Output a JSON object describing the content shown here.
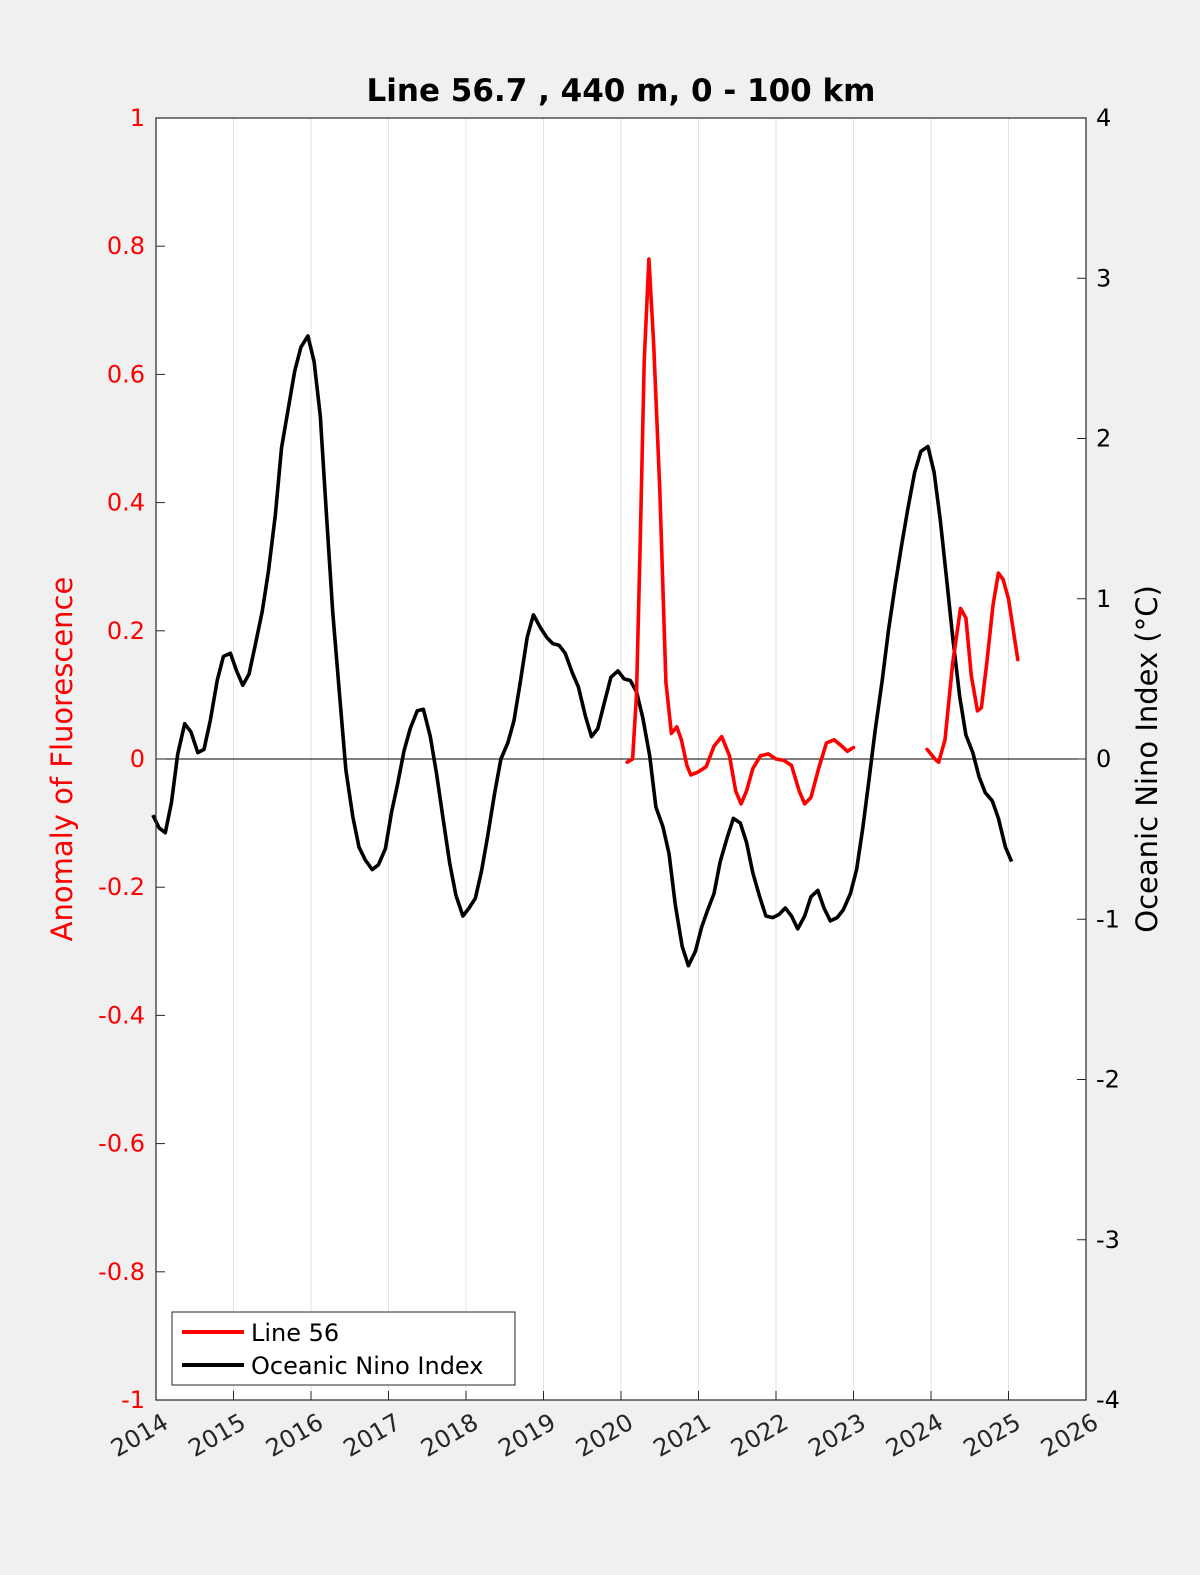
{
  "chart_data": {
    "type": "line",
    "title": "Line 56.7 , 440 m, 0 - 100 km",
    "ylabel_left": "Anomaly of Fluorescence",
    "ylabel_right": "Oceanic Nino Index (°C)",
    "xlabel": "",
    "xlim": [
      2014,
      2026
    ],
    "ylim_left": [
      -1,
      1
    ],
    "ylim_right": [
      -4,
      4
    ],
    "x_ticks": [
      "2014",
      "2015",
      "2016",
      "2017",
      "2018",
      "2019",
      "2020",
      "2021",
      "2022",
      "2023",
      "2024",
      "2025",
      "2026"
    ],
    "y_left_ticks": [
      "-1",
      "-0.8",
      "-0.6",
      "-0.4",
      "-0.2",
      "0",
      "0.2",
      "0.4",
      "0.6",
      "0.8",
      "1"
    ],
    "y_right_ticks": [
      "-4",
      "-3",
      "-2",
      "-1",
      "0",
      "1",
      "2",
      "3",
      "4"
    ],
    "grid": "vertical",
    "legend_position": "bottom-left",
    "colors": {
      "line56": "#ff0000",
      "oni": "#000000"
    },
    "series": [
      {
        "name": "Line 56",
        "axis": "left",
        "segments": [
          [
            [
              2020.08,
              -0.005
            ],
            [
              2020.15,
              0.0
            ],
            [
              2020.2,
              0.1
            ],
            [
              2020.25,
              0.35
            ],
            [
              2020.3,
              0.62
            ],
            [
              2020.36,
              0.78
            ],
            [
              2020.42,
              0.65
            ],
            [
              2020.5,
              0.42
            ],
            [
              2020.58,
              0.12
            ],
            [
              2020.65,
              0.04
            ],
            [
              2020.72,
              0.05
            ],
            [
              2020.78,
              0.03
            ],
            [
              2020.85,
              -0.01
            ],
            [
              2020.9,
              -0.025
            ],
            [
              2021.0,
              -0.02
            ],
            [
              2021.1,
              -0.012
            ],
            [
              2021.2,
              0.02
            ],
            [
              2021.3,
              0.035
            ],
            [
              2021.4,
              0.005
            ],
            [
              2021.48,
              -0.05
            ],
            [
              2021.55,
              -0.07
            ],
            [
              2021.62,
              -0.05
            ],
            [
              2021.7,
              -0.015
            ],
            [
              2021.8,
              0.005
            ],
            [
              2021.9,
              0.008
            ],
            [
              2022.0,
              0.0
            ],
            [
              2022.1,
              -0.002
            ],
            [
              2022.2,
              -0.01
            ],
            [
              2022.3,
              -0.05
            ],
            [
              2022.37,
              -0.07
            ],
            [
              2022.45,
              -0.06
            ],
            [
              2022.55,
              -0.015
            ],
            [
              2022.65,
              0.025
            ],
            [
              2022.75,
              0.03
            ],
            [
              2022.85,
              0.02
            ],
            [
              2022.92,
              0.012
            ],
            [
              2023.0,
              0.018
            ]
          ],
          [
            [
              2023.95,
              0.015
            ],
            [
              2024.05,
              0.0
            ],
            [
              2024.1,
              -0.005
            ],
            [
              2024.18,
              0.03
            ],
            [
              2024.28,
              0.15
            ],
            [
              2024.38,
              0.235
            ],
            [
              2024.45,
              0.22
            ],
            [
              2024.52,
              0.13
            ],
            [
              2024.6,
              0.075
            ],
            [
              2024.65,
              0.08
            ],
            [
              2024.72,
              0.15
            ],
            [
              2024.8,
              0.24
            ],
            [
              2024.87,
              0.29
            ],
            [
              2024.93,
              0.28
            ],
            [
              2025.0,
              0.25
            ],
            [
              2025.05,
              0.21
            ],
            [
              2025.12,
              0.155
            ]
          ]
        ]
      },
      {
        "name": "Oceanic Nino Index",
        "axis": "right",
        "points": [
          [
            2013.96,
            -0.35
          ],
          [
            2014.04,
            -0.43
          ],
          [
            2014.12,
            -0.46
          ],
          [
            2014.2,
            -0.27
          ],
          [
            2014.28,
            0.03
          ],
          [
            2014.37,
            0.22
          ],
          [
            2014.45,
            0.17
          ],
          [
            2014.54,
            0.04
          ],
          [
            2014.62,
            0.06
          ],
          [
            2014.7,
            0.24
          ],
          [
            2014.79,
            0.49
          ],
          [
            2014.87,
            0.64
          ],
          [
            2014.96,
            0.66
          ],
          [
            2015.04,
            0.55
          ],
          [
            2015.12,
            0.46
          ],
          [
            2015.2,
            0.53
          ],
          [
            2015.28,
            0.71
          ],
          [
            2015.37,
            0.92
          ],
          [
            2015.45,
            1.17
          ],
          [
            2015.54,
            1.52
          ],
          [
            2015.62,
            1.94
          ],
          [
            2015.7,
            2.17
          ],
          [
            2015.79,
            2.42
          ],
          [
            2015.87,
            2.57
          ],
          [
            2015.96,
            2.64
          ],
          [
            2016.04,
            2.48
          ],
          [
            2016.12,
            2.14
          ],
          [
            2016.2,
            1.52
          ],
          [
            2016.28,
            0.92
          ],
          [
            2016.37,
            0.39
          ],
          [
            2016.45,
            -0.07
          ],
          [
            2016.54,
            -0.36
          ],
          [
            2016.62,
            -0.55
          ],
          [
            2016.7,
            -0.63
          ],
          [
            2016.79,
            -0.69
          ],
          [
            2016.87,
            -0.66
          ],
          [
            2016.96,
            -0.56
          ],
          [
            2017.04,
            -0.33
          ],
          [
            2017.12,
            -0.15
          ],
          [
            2017.2,
            0.05
          ],
          [
            2017.28,
            0.19
          ],
          [
            2017.37,
            0.3
          ],
          [
            2017.45,
            0.31
          ],
          [
            2017.54,
            0.14
          ],
          [
            2017.62,
            -0.09
          ],
          [
            2017.7,
            -0.36
          ],
          [
            2017.79,
            -0.65
          ],
          [
            2017.87,
            -0.85
          ],
          [
            2017.96,
            -0.98
          ],
          [
            2018.04,
            -0.93
          ],
          [
            2018.12,
            -0.87
          ],
          [
            2018.2,
            -0.7
          ],
          [
            2018.28,
            -0.48
          ],
          [
            2018.37,
            -0.21
          ],
          [
            2018.45,
            0.0
          ],
          [
            2018.54,
            0.1
          ],
          [
            2018.62,
            0.24
          ],
          [
            2018.7,
            0.48
          ],
          [
            2018.79,
            0.76
          ],
          [
            2018.87,
            0.9
          ],
          [
            2018.96,
            0.82
          ],
          [
            2019.04,
            0.76
          ],
          [
            2019.12,
            0.72
          ],
          [
            2019.2,
            0.71
          ],
          [
            2019.28,
            0.66
          ],
          [
            2019.37,
            0.54
          ],
          [
            2019.45,
            0.45
          ],
          [
            2019.54,
            0.27
          ],
          [
            2019.62,
            0.14
          ],
          [
            2019.7,
            0.19
          ],
          [
            2019.79,
            0.36
          ],
          [
            2019.87,
            0.51
          ],
          [
            2019.96,
            0.55
          ],
          [
            2020.04,
            0.5
          ],
          [
            2020.12,
            0.49
          ],
          [
            2020.2,
            0.42
          ],
          [
            2020.28,
            0.26
          ],
          [
            2020.37,
            0.02
          ],
          [
            2020.45,
            -0.3
          ],
          [
            2020.54,
            -0.42
          ],
          [
            2020.62,
            -0.59
          ],
          [
            2020.7,
            -0.91
          ],
          [
            2020.79,
            -1.17
          ],
          [
            2020.87,
            -1.29
          ],
          [
            2020.96,
            -1.2
          ],
          [
            2021.04,
            -1.05
          ],
          [
            2021.12,
            -0.94
          ],
          [
            2021.2,
            -0.84
          ],
          [
            2021.28,
            -0.64
          ],
          [
            2021.37,
            -0.49
          ],
          [
            2021.45,
            -0.37
          ],
          [
            2021.54,
            -0.4
          ],
          [
            2021.62,
            -0.52
          ],
          [
            2021.7,
            -0.71
          ],
          [
            2021.79,
            -0.86
          ],
          [
            2021.87,
            -0.98
          ],
          [
            2021.96,
            -0.99
          ],
          [
            2022.04,
            -0.97
          ],
          [
            2022.12,
            -0.93
          ],
          [
            2022.2,
            -0.98
          ],
          [
            2022.28,
            -1.06
          ],
          [
            2022.37,
            -0.98
          ],
          [
            2022.45,
            -0.86
          ],
          [
            2022.54,
            -0.82
          ],
          [
            2022.62,
            -0.93
          ],
          [
            2022.7,
            -1.01
          ],
          [
            2022.79,
            -0.99
          ],
          [
            2022.87,
            -0.94
          ],
          [
            2022.96,
            -0.84
          ],
          [
            2023.04,
            -0.69
          ],
          [
            2023.12,
            -0.43
          ],
          [
            2023.2,
            -0.13
          ],
          [
            2023.28,
            0.18
          ],
          [
            2023.37,
            0.49
          ],
          [
            2023.45,
            0.8
          ],
          [
            2023.54,
            1.09
          ],
          [
            2023.62,
            1.33
          ],
          [
            2023.7,
            1.56
          ],
          [
            2023.79,
            1.79
          ],
          [
            2023.87,
            1.92
          ],
          [
            2023.96,
            1.95
          ],
          [
            2024.04,
            1.79
          ],
          [
            2024.12,
            1.49
          ],
          [
            2024.2,
            1.13
          ],
          [
            2024.28,
            0.76
          ],
          [
            2024.37,
            0.39
          ],
          [
            2024.45,
            0.15
          ],
          [
            2024.54,
            0.04
          ],
          [
            2024.62,
            -0.11
          ],
          [
            2024.7,
            -0.21
          ],
          [
            2024.79,
            -0.26
          ],
          [
            2024.87,
            -0.37
          ],
          [
            2024.96,
            -0.55
          ],
          [
            2025.04,
            -0.64
          ]
        ]
      }
    ]
  }
}
